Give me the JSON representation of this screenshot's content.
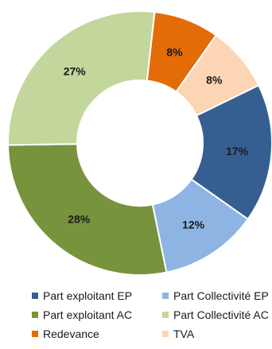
{
  "chart_data": {
    "type": "pie",
    "donut": true,
    "title": "",
    "slices": [
      {
        "label": "Part exploitant EP",
        "value": 17,
        "display": "17%",
        "color": "#365f91"
      },
      {
        "label": "Part Collectivité EP",
        "value": 12,
        "display": "12%",
        "color": "#8eb4e3"
      },
      {
        "label": "Part exploitant AC",
        "value": 28,
        "display": "28%",
        "color": "#77933c"
      },
      {
        "label": "Part Collectivité AC",
        "value": 27,
        "display": "27%",
        "color": "#c3d69b"
      },
      {
        "label": "Redevance",
        "value": 8,
        "display": "8%",
        "color": "#e36c09"
      },
      {
        "label": "TVA",
        "value": 8,
        "display": "8%",
        "color": "#fcd5b5"
      }
    ],
    "legend_position": "bottom",
    "legend_columns": 2
  }
}
